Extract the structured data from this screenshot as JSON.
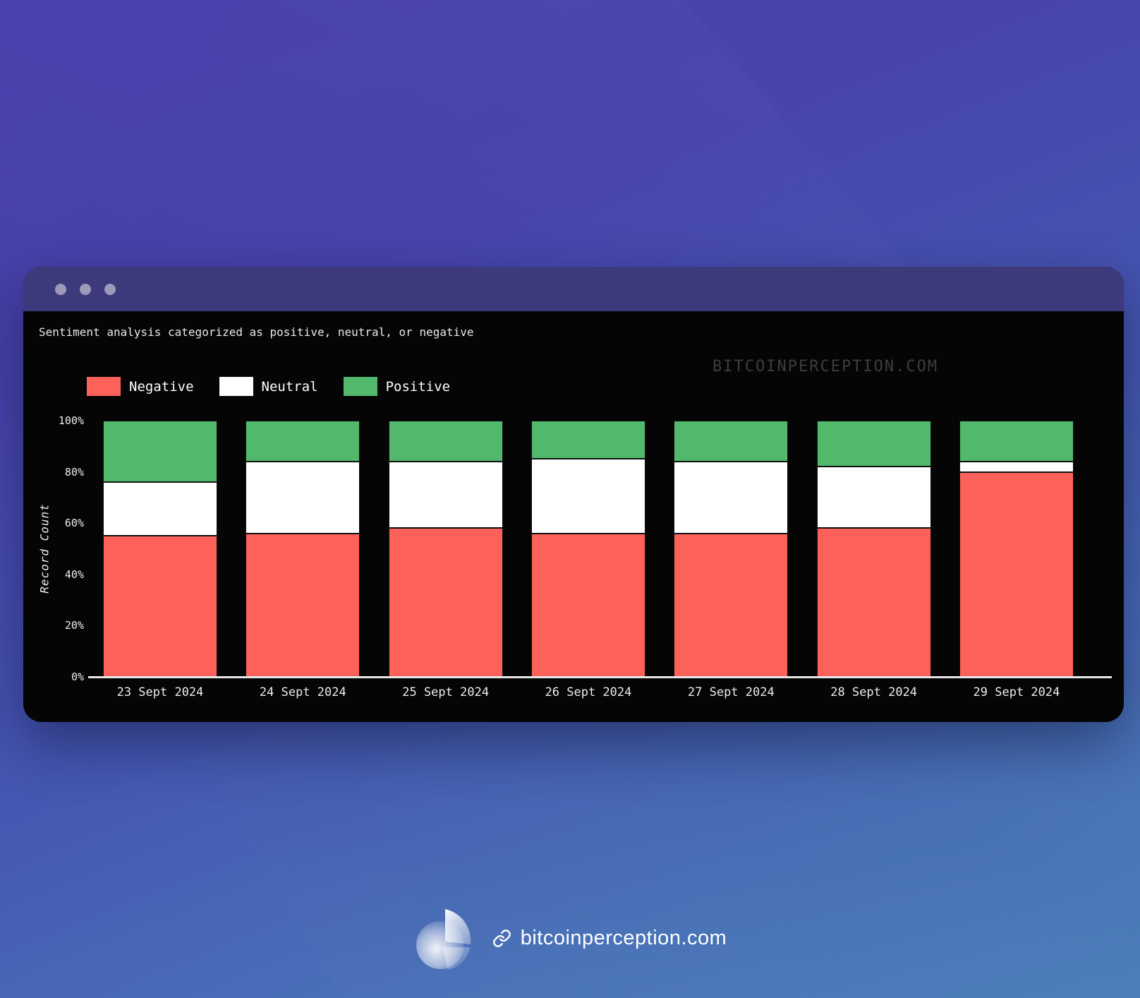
{
  "window": {
    "watermark": "BITCOINPERCEPTION.COM",
    "titlebar_color": "#3d3a7b",
    "dot_color": "#9e9abc"
  },
  "chart_data": {
    "type": "bar",
    "stacked": true,
    "normalized": "percent",
    "title": "Sentiment analysis categorized as positive, neutral, or negative",
    "ylabel": "Record Count",
    "ylim": [
      0,
      100
    ],
    "yticks": [
      0,
      20,
      40,
      60,
      80,
      100
    ],
    "ytick_suffix": "%",
    "grid": false,
    "legend_position": "top-left",
    "background": "#050505",
    "categories": [
      "23 Sept 2024",
      "24 Sept 2024",
      "25 Sept 2024",
      "26 Sept 2024",
      "27 Sept 2024",
      "28 Sept 2024",
      "29 Sept 2024"
    ],
    "series": [
      {
        "name": "Negative",
        "color": "#fc625a",
        "values": [
          55,
          56,
          58,
          56,
          56,
          58,
          80
        ]
      },
      {
        "name": "Neutral",
        "color": "#ffffff",
        "values": [
          21,
          28,
          26,
          29,
          28,
          24,
          4
        ]
      },
      {
        "name": "Positive",
        "color": "#52b96c",
        "values": [
          24,
          16,
          16,
          15,
          16,
          18,
          16
        ]
      }
    ]
  },
  "footer": {
    "link_text": "bitcoinperception.com"
  }
}
